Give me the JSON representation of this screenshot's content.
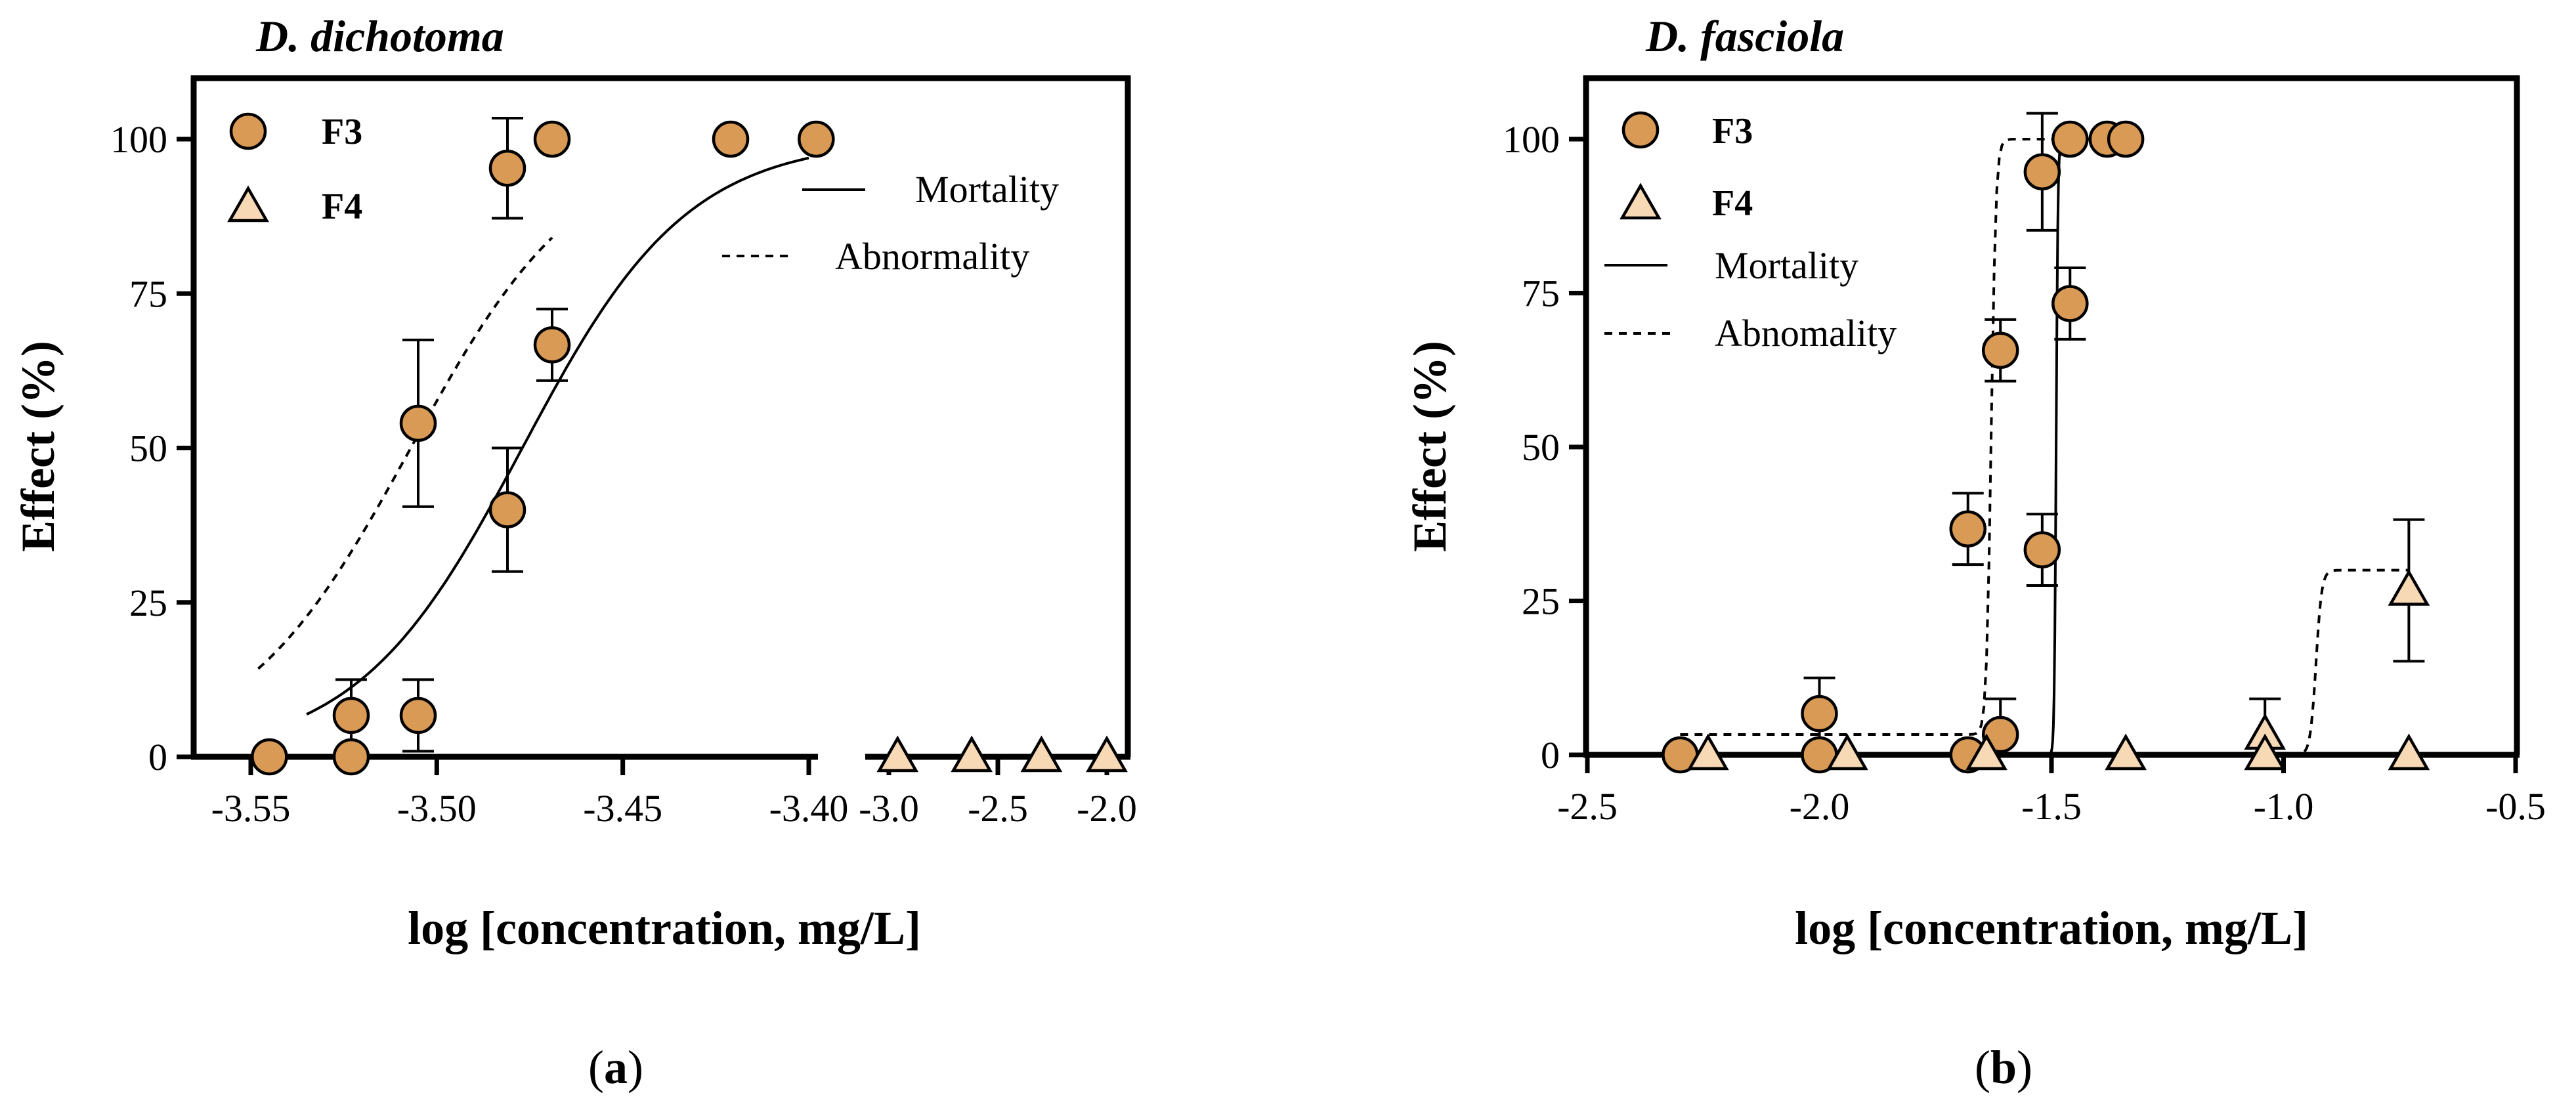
{
  "colors": {
    "f3_fill": "#D99A55",
    "f4_fill": "#F7D9B5",
    "stroke": "#000000"
  },
  "chart_data": [
    {
      "panel": "a",
      "caption": [
        "(",
        "a",
        ")"
      ],
      "type": "scatter",
      "title": "D. dichotoma",
      "xlabel": "log [concentration, mg/L]",
      "ylabel": "Effect (%)",
      "ylim": [
        0,
        100
      ],
      "yticks": [
        "0",
        "25",
        "50",
        "75",
        "100"
      ],
      "x_axis_broken": true,
      "x_segments": [
        {
          "range": [
            -3.55,
            -3.4
          ],
          "ticks": [
            "-3.55",
            "-3.50",
            "-3.45",
            "-3.40"
          ],
          "tick_values": [
            -3.55,
            -3.5,
            -3.45,
            -3.4
          ]
        },
        {
          "range": [
            -3.0,
            -2.0
          ],
          "ticks": [
            "-3.0",
            "-2.5",
            "-2.0"
          ],
          "tick_values": [
            -3.0,
            -2.5,
            -2.0
          ]
        }
      ],
      "legend": {
        "position": "top-left",
        "markers": [
          {
            "label": "F3",
            "series": "F3"
          },
          {
            "label": "F4",
            "series": "F4"
          }
        ],
        "lines": [
          {
            "label": "Mortality",
            "style": "solid"
          },
          {
            "label": "Abnormality",
            "style": "dashed"
          }
        ]
      },
      "series": [
        {
          "name": "F3",
          "marker": "circle",
          "points": [
            {
              "x": -3.545,
              "y": 0,
              "err": 0
            },
            {
              "x": -3.523,
              "y": 6.7,
              "err": 5.8
            },
            {
              "x": -3.523,
              "y": 0,
              "err": 0
            },
            {
              "x": -3.505,
              "y": 54,
              "err": 13.5
            },
            {
              "x": -3.505,
              "y": 6.7,
              "err": 5.8
            },
            {
              "x": -3.481,
              "y": 95.3,
              "err": 8.1
            },
            {
              "x": -3.481,
              "y": 40,
              "err": 10
            },
            {
              "x": -3.469,
              "y": 100,
              "err": 0
            },
            {
              "x": -3.469,
              "y": 66.7,
              "err": 5.8
            },
            {
              "x": -3.421,
              "y": 100,
              "err": 0
            },
            {
              "x": -3.398,
              "y": 100,
              "err": 0
            }
          ]
        },
        {
          "name": "F4",
          "marker": "triangle",
          "points": [
            {
              "x": -2.96,
              "y": 0,
              "err": 0
            },
            {
              "x": -2.62,
              "y": 0,
              "err": 0
            },
            {
              "x": -2.3,
              "y": 0,
              "err": 0
            },
            {
              "x": -2.0,
              "y": 0,
              "err": 0
            }
          ]
        }
      ],
      "fits": [
        {
          "label": "Mortality",
          "style": "solid",
          "bottom": 0,
          "top": 100,
          "x50": -3.477,
          "hill": 1.95,
          "x_from": -3.535,
          "x_to": -3.4
        },
        {
          "label": "Abnormality",
          "style": "dashed",
          "bottom": 0,
          "top": 100,
          "x50": -3.507,
          "hill": 1.9,
          "x_from": -3.548,
          "x_to": -3.469
        }
      ]
    },
    {
      "panel": "b",
      "caption": [
        "(",
        "b",
        ")"
      ],
      "type": "scatter",
      "title": "D. fasciola",
      "xlabel": "log [concentration, mg/L]",
      "ylabel": "Effect (%)",
      "ylim": [
        0,
        100
      ],
      "yticks": [
        "0",
        "25",
        "50",
        "75",
        "100"
      ],
      "x_axis_broken": false,
      "x_segments": [
        {
          "range": [
            -2.5,
            -0.5
          ],
          "ticks": [
            "-2.5",
            "-2.0",
            "-1.5",
            "-1.0",
            "-0.5"
          ],
          "tick_values": [
            -2.5,
            -2.0,
            -1.5,
            -1.0,
            -0.5
          ]
        }
      ],
      "legend": {
        "position": "top-left",
        "markers": [
          {
            "label": "F3",
            "series": "F3"
          },
          {
            "label": "F4",
            "series": "F4"
          }
        ],
        "lines": [
          {
            "label": "Mortality",
            "style": "solid"
          },
          {
            "label": "Abnomality",
            "style": "dashed"
          }
        ]
      },
      "series": [
        {
          "name": "F3",
          "marker": "circle",
          "points": [
            {
              "x": -2.3,
              "y": 0,
              "err": 0
            },
            {
              "x": -2.0,
              "y": 6.7,
              "err": 5.8
            },
            {
              "x": -2.0,
              "y": 0,
              "err": 0
            },
            {
              "x": -1.68,
              "y": 36.7,
              "err": 5.8
            },
            {
              "x": -1.68,
              "y": 0,
              "err": 0
            },
            {
              "x": -1.61,
              "y": 65.7,
              "err": 5
            },
            {
              "x": -1.61,
              "y": 3.3,
              "err": 5.8
            },
            {
              "x": -1.52,
              "y": 94.7,
              "err": 9.5
            },
            {
              "x": -1.52,
              "y": 33.3,
              "err": 5.8
            },
            {
              "x": -1.46,
              "y": 100,
              "err": 0
            },
            {
              "x": -1.46,
              "y": 73.3,
              "err": 5.8
            },
            {
              "x": -1.38,
              "y": 100,
              "err": 0
            },
            {
              "x": -1.34,
              "y": 100,
              "err": 0
            }
          ]
        },
        {
          "name": "F4",
          "marker": "triangle",
          "points": [
            {
              "x": -2.24,
              "y": 0,
              "err": 0
            },
            {
              "x": -1.94,
              "y": 0,
              "err": 0
            },
            {
              "x": -1.64,
              "y": 0,
              "err": 0
            },
            {
              "x": -1.34,
              "y": 0,
              "err": 0
            },
            {
              "x": -1.04,
              "y": 3.3,
              "err": 5.8
            },
            {
              "x": -1.04,
              "y": 0,
              "err": 0
            },
            {
              "x": -0.73,
              "y": 26.7,
              "err": 11.5
            },
            {
              "x": -0.73,
              "y": 0,
              "err": 0
            }
          ]
        }
      ],
      "fits": [
        {
          "label": "Mortality",
          "style": "solid",
          "bottom": 0,
          "top": 100,
          "x50": -1.49,
          "hill": 22,
          "x_from": -1.61,
          "x_to": -1.36
        },
        {
          "label": "Abnomality",
          "style": "dashed",
          "bottom": 3.3,
          "top": 100,
          "x50": -1.63,
          "hill": 8.5,
          "x_from": -2.3,
          "x_to": -1.42
        },
        {
          "label": "Abnomality",
          "style": "dashed",
          "bottom": 0,
          "top": 30,
          "x50": -0.93,
          "hill": 7,
          "x_from": -1.14,
          "x_to": -0.73
        }
      ]
    }
  ]
}
